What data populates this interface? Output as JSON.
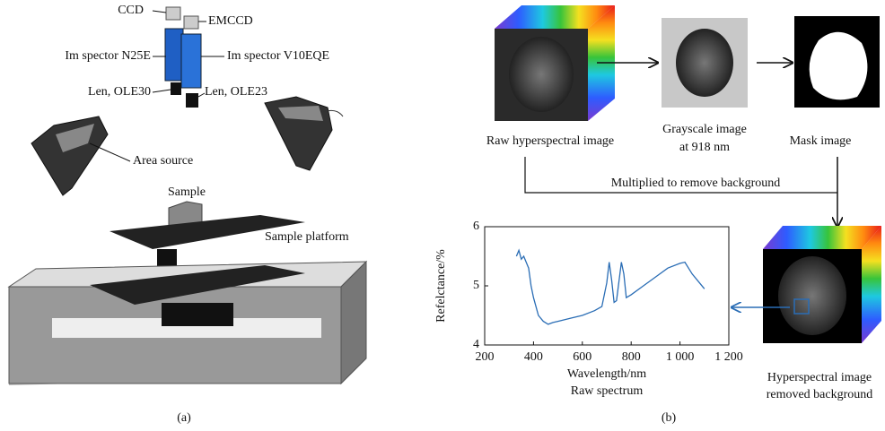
{
  "panel_a": {
    "label": "(a)",
    "ccd": "CCD",
    "emccd": "EMCCD",
    "spectrograph_left": "Im spector N25E",
    "spectrograph_right": "Im spector V10EQE",
    "lens_left": "Len, OLE30",
    "lens_right": "Len, OLE23",
    "light": "Area source",
    "sample": "Sample",
    "platform": "Sample platform"
  },
  "panel_b": {
    "label": "(b)",
    "raw_image": "Raw hyperspectral image",
    "gray_image": [
      "Grayscale image",
      "at 918 nm"
    ],
    "mask_image": "Mask image",
    "operation": "Multiplied to remove background",
    "result_image": [
      "Hyperspectral image",
      "removed background"
    ]
  },
  "chart_data": {
    "type": "line",
    "x_label": "Wavelength/nm",
    "y_label": "Refelctance/%",
    "caption": "Raw spectrum",
    "x": [
      330,
      340,
      350,
      360,
      370,
      380,
      390,
      400,
      410,
      420,
      440,
      460,
      480,
      500,
      550,
      600,
      650,
      680,
      700,
      710,
      720,
      730,
      740,
      760,
      770,
      780,
      800,
      850,
      900,
      950,
      1000,
      1020,
      1050,
      1080,
      1100
    ],
    "series": [
      {
        "color": "#2a6db5",
        "values": [
          5.5,
          5.6,
          5.45,
          5.5,
          5.4,
          5.3,
          5.0,
          4.8,
          4.65,
          4.5,
          4.4,
          4.35,
          4.38,
          4.4,
          4.45,
          4.5,
          4.58,
          4.65,
          5.05,
          5.4,
          5.1,
          4.72,
          4.75,
          5.4,
          5.2,
          4.8,
          4.85,
          5.0,
          5.15,
          5.3,
          5.38,
          5.4,
          5.2,
          5.05,
          4.95
        ]
      }
    ],
    "xlim": [
      200,
      1200
    ],
    "ylim": [
      4,
      6
    ],
    "xticks": [
      200,
      400,
      600,
      800,
      {
        "value": 1000,
        "label": "1 000"
      },
      {
        "value": 1200,
        "label": "1 200"
      }
    ],
    "yticks": [
      4,
      5,
      6
    ]
  }
}
